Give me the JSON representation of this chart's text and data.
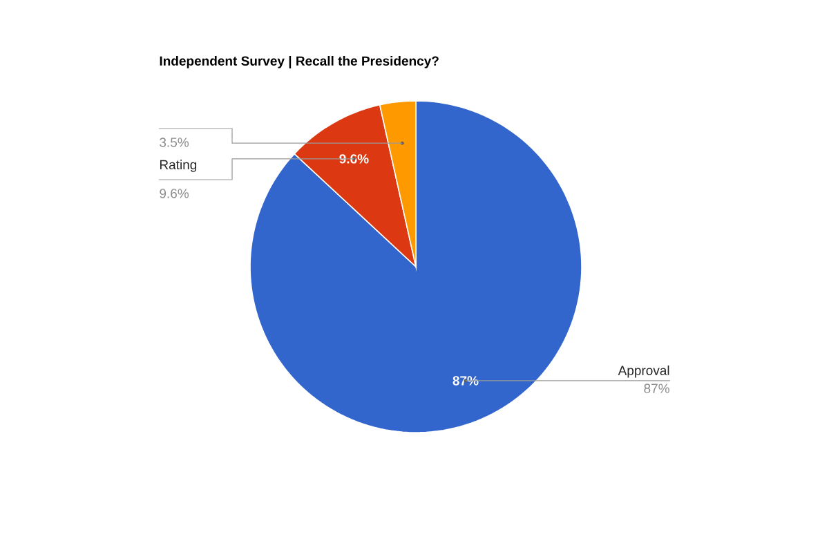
{
  "chart_data": {
    "type": "pie",
    "title": "Independent Survey | Recall the Presidency?",
    "categories": [
      "Approval",
      "Rating",
      null
    ],
    "values": [
      87,
      9.6,
      3.5
    ],
    "value_labels": [
      "87%",
      "9.6%",
      "3.5%"
    ],
    "colors": [
      "#3366cc",
      "#dc3912",
      "#ff9900"
    ]
  }
}
